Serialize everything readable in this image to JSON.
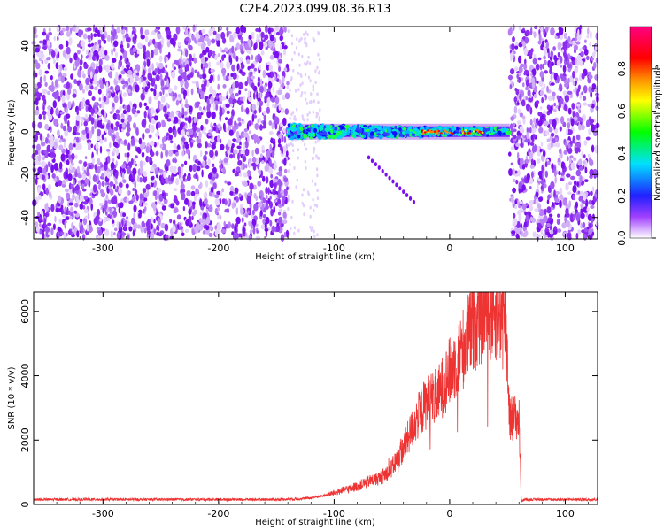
{
  "title": "C2E4.2023.099.08.36.R13",
  "chart_data": [
    {
      "type": "heatmap",
      "xlabel": "Height of straight line (km)",
      "ylabel": "Frequency (Hz)",
      "xlim": [
        -360,
        128
      ],
      "ylim": [
        -50,
        49
      ],
      "xticks": [
        -300,
        -200,
        -100,
        0,
        100
      ],
      "xtick_labels": [
        "-300",
        "-200",
        "-100",
        "0",
        "100"
      ],
      "yticks": [
        -40,
        -20,
        0,
        20,
        40
      ],
      "ytick_labels": [
        "-40",
        "-20",
        "0",
        "20",
        "40"
      ],
      "noise_regions_km": [
        [
          -360,
          -140
        ],
        [
          52,
          128
        ]
      ],
      "signal_band": {
        "x_start_km": -140,
        "x_end_km": 52,
        "center_hz": 0,
        "halfwidth_hz": 4
      },
      "colorbar": {
        "label": "Normalized spectral amplitude",
        "range": [
          0.0,
          1.0
        ],
        "ticks": [
          0.0,
          0.2,
          0.4,
          0.6,
          0.8
        ],
        "tick_labels": [
          "0.0",
          "0.2",
          "0.4",
          "0.6",
          "0.8"
        ],
        "colors": [
          "#ffffff",
          "#8000ff",
          "#0000ff",
          "#00ffff",
          "#00ff00",
          "#ffff00",
          "#ff8000",
          "#ff0000",
          "#ff0080"
        ]
      },
      "grid": false
    },
    {
      "type": "line",
      "xlabel": "Height of straight line (km)",
      "ylabel": "SNR (10 * v/v)",
      "xlim": [
        -360,
        128
      ],
      "ylim": [
        0,
        6600
      ],
      "xticks": [
        -300,
        -200,
        -100,
        0,
        100
      ],
      "xtick_labels": [
        "-300",
        "-200",
        "-100",
        "0",
        "100"
      ],
      "yticks": [
        0,
        2000,
        4000,
        6000
      ],
      "ytick_labels": [
        "0",
        "2000",
        "4000",
        "6000"
      ],
      "grid": false,
      "series": [
        {
          "color": "#ee3333",
          "x": [
            -360,
            -300,
            -200,
            -150,
            -130,
            -120,
            -110,
            -100,
            -90,
            -80,
            -70,
            -60,
            -50,
            -40,
            -30,
            -20,
            -10,
            0,
            10,
            20,
            30,
            40,
            48,
            50,
            52,
            55,
            60,
            62,
            65,
            80,
            100,
            128
          ],
          "y": [
            150,
            150,
            150,
            150,
            170,
            200,
            260,
            350,
            450,
            550,
            700,
            800,
            1100,
            1700,
            2500,
            3100,
            3300,
            4000,
            4600,
            5400,
            5850,
            5850,
            5700,
            4500,
            2600,
            2650,
            2600,
            100,
            150,
            150,
            150,
            150
          ]
        }
      ]
    }
  ]
}
